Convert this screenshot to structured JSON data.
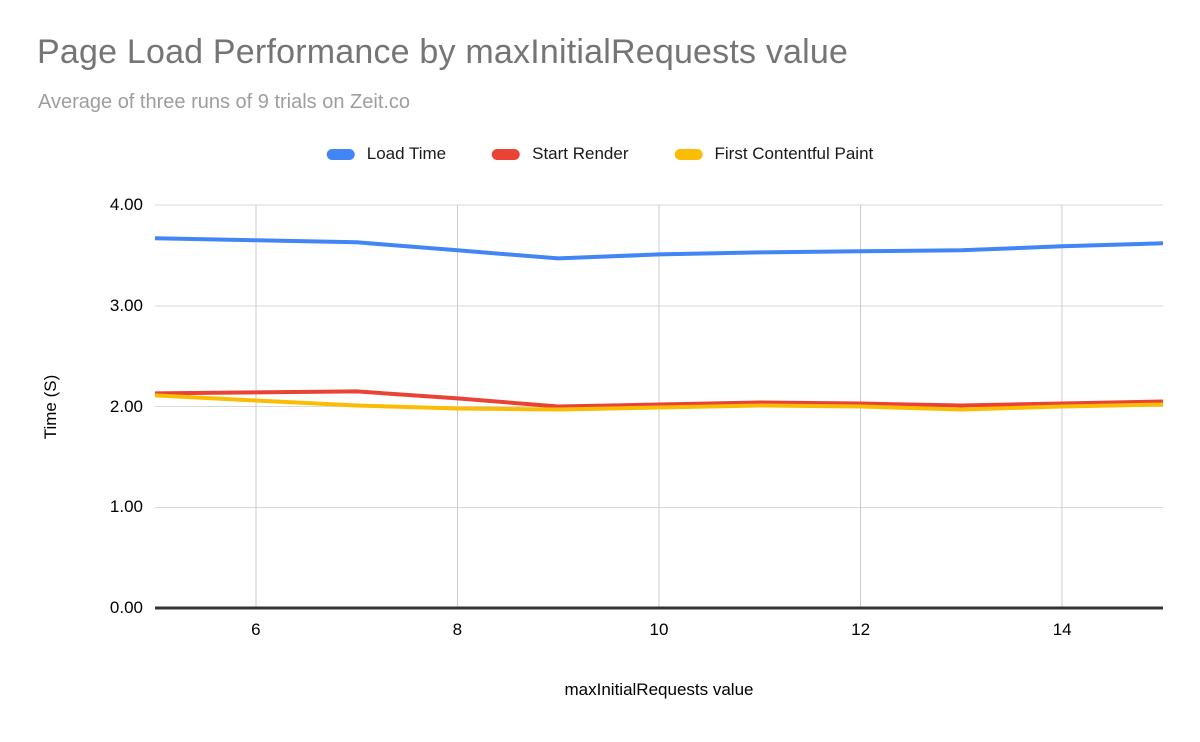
{
  "chart_data": {
    "type": "line",
    "title": "Page Load Performance by maxInitialRequests value",
    "subtitle": "Average of three runs of 9 trials on Zeit.co",
    "xlabel": "maxInitialRequests value",
    "ylabel": "Time (S)",
    "x": [
      5,
      6,
      7,
      8,
      9,
      10,
      11,
      12,
      13,
      14,
      15
    ],
    "series": [
      {
        "name": "Load Time",
        "color": "#4285F4",
        "values": [
          3.67,
          3.65,
          3.63,
          3.55,
          3.47,
          3.51,
          3.53,
          3.54,
          3.55,
          3.59,
          3.62
        ]
      },
      {
        "name": "Start Render",
        "color": "#EA4335",
        "values": [
          2.13,
          2.14,
          2.15,
          2.08,
          2.0,
          2.02,
          2.04,
          2.03,
          2.01,
          2.03,
          2.05
        ]
      },
      {
        "name": "First Contentful Paint",
        "color": "#FBBC04",
        "values": [
          2.11,
          2.06,
          2.01,
          1.98,
          1.97,
          1.99,
          2.01,
          2.0,
          1.97,
          2.0,
          2.02
        ]
      }
    ],
    "xlim": [
      5,
      15
    ],
    "ylim": [
      0,
      4
    ],
    "x_ticks": [
      "6",
      "8",
      "10",
      "12",
      "14"
    ],
    "y_ticks": [
      "0.00",
      "1.00",
      "2.00",
      "3.00",
      "4.00"
    ],
    "grid": true,
    "legend_position": "top",
    "style": {
      "grid_color": "#d9d9d9",
      "vertical_grid_color": "#cccccc",
      "baseline_color": "#333333",
      "title_color": "#757575",
      "subtitle_color": "#9e9e9e",
      "tick_label_color": "#000000",
      "background": "#ffffff"
    }
  }
}
